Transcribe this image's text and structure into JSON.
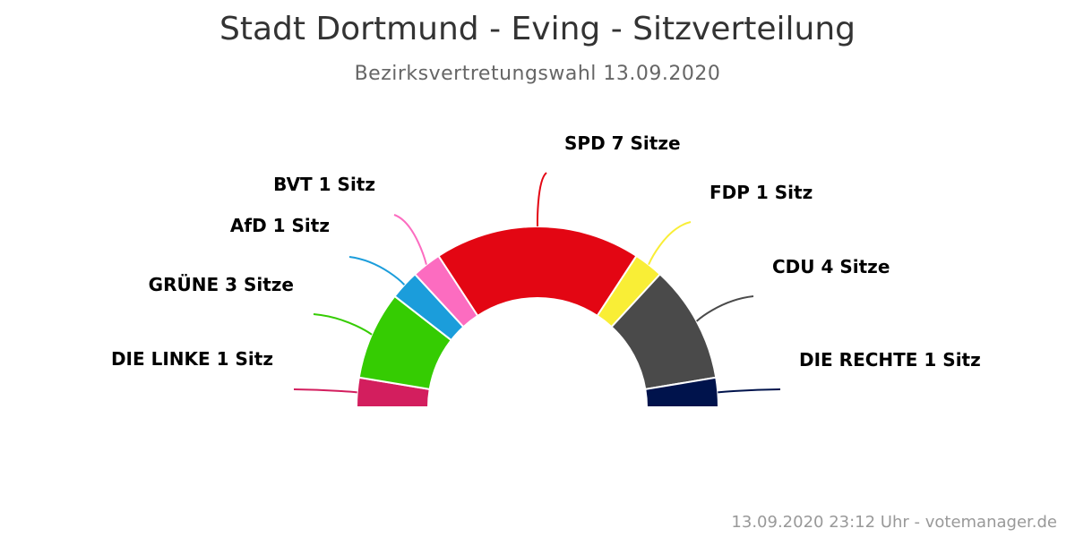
{
  "header": {
    "title": "Stadt Dortmund - Eving - Sitzverteilung",
    "subtitle": "Bezirksvertretungswahl 13.09.2020"
  },
  "footer": {
    "credit": "13.09.2020 23:12 Uhr - votemanager.de"
  },
  "chart_data": {
    "type": "pie",
    "variant": "semicircle",
    "title": "Stadt Dortmund - Eving - Sitzverteilung",
    "subtitle": "Bezirksvertretungswahl 13.09.2020",
    "total": 19,
    "slices": [
      {
        "party": "DIE LINKE",
        "seats": 1,
        "label": "DIE LINKE 1 Sitz",
        "color": "#d31e5e"
      },
      {
        "party": "GRÜNE",
        "seats": 3,
        "label": "GRÜNE 3 Sitze",
        "color": "#35cc02"
      },
      {
        "party": "AfD",
        "seats": 1,
        "label": "AfD 1 Sitz",
        "color": "#1b9ddb"
      },
      {
        "party": "BVT",
        "seats": 1,
        "label": "BVT 1 Sitz",
        "color": "#fc6cc0"
      },
      {
        "party": "SPD",
        "seats": 7,
        "label": "SPD 7 Sitze",
        "color": "#e30613"
      },
      {
        "party": "FDP",
        "seats": 1,
        "label": "FDP 1 Sitz",
        "color": "#f9ee36"
      },
      {
        "party": "CDU",
        "seats": 4,
        "label": "CDU 4 Sitze",
        "color": "#4a4a4a"
      },
      {
        "party": "DIE RECHTE",
        "seats": 1,
        "label": "DIE RECHTE 1 Sitz",
        "color": "#00134c"
      }
    ]
  }
}
